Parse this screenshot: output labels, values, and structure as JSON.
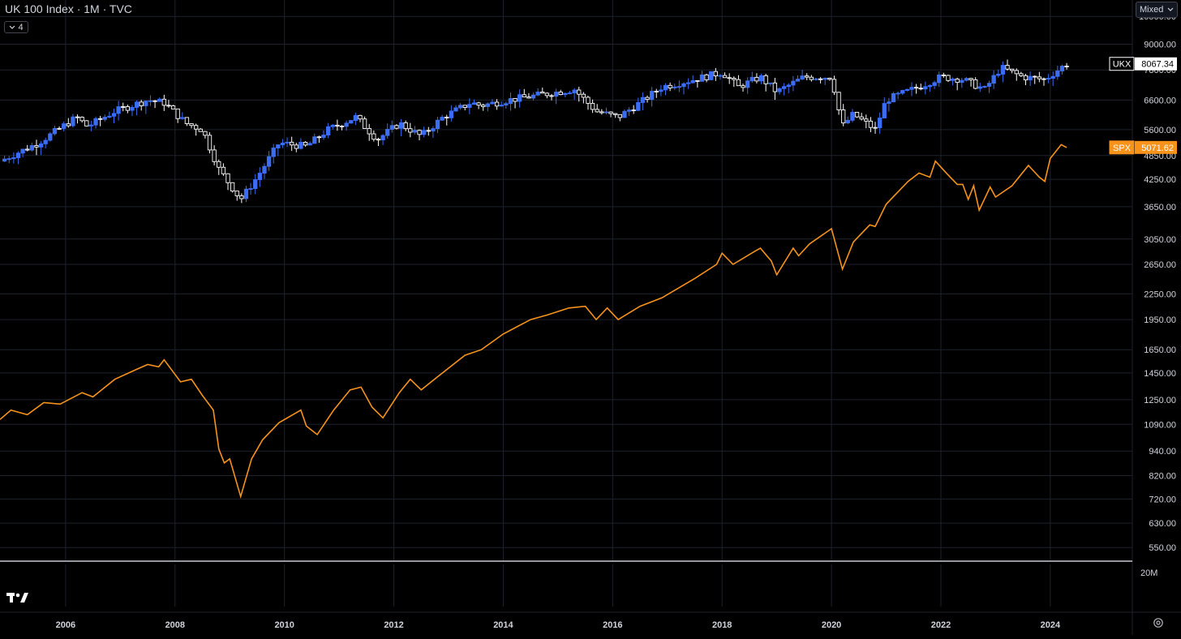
{
  "header": {
    "title": "UK 100 Index · 1M · TVC",
    "indicator_count": "4",
    "scale_mode": "Mixed"
  },
  "footer": {
    "volume_scale_label": "20M"
  },
  "colors": {
    "background": "#000000",
    "grid": "#1e222d",
    "up": "#3a6cf4",
    "down": "#ffffff",
    "spx": "#f7931a",
    "axis_text": "#d1d4dc",
    "divider": "#9598a1"
  },
  "icons": [
    "chevron-down-icon",
    "tradingview-logo-icon",
    "settings-gear-icon"
  ],
  "chart_data": {
    "type": "candlestick+line",
    "x_axis": {
      "unit": "year",
      "range": [
        2004.8,
        2025.5
      ],
      "ticks": [
        "2006",
        "2008",
        "2010",
        "2012",
        "2014",
        "2016",
        "2018",
        "2020",
        "2022",
        "2024"
      ]
    },
    "y_axis": {
      "scale": "log",
      "range": [
        510,
        11500
      ],
      "tick_labels": [
        "10500.00",
        "9000.00",
        "7800.00",
        "6600.00",
        "5600.00",
        "4850.00",
        "4250.00",
        "3650.00",
        "3050.00",
        "2650.00",
        "2250.00",
        "1950.00",
        "1650.00",
        "1450.00",
        "1250.00",
        "1090.00",
        "940.00",
        "820.00",
        "720.00",
        "630.00",
        "550.00"
      ],
      "grid": true
    },
    "series": [
      {
        "name": "UKX",
        "type": "candlestick",
        "last_value": "8067.34",
        "interval": "1M",
        "anchors": [
          [
            2004.8,
            4700
          ],
          [
            2005.5,
            5200
          ],
          [
            2006.2,
            6000
          ],
          [
            2006.4,
            5700
          ],
          [
            2006.9,
            6200
          ],
          [
            2007.5,
            6600
          ],
          [
            2007.8,
            6500
          ],
          [
            2008.2,
            5800
          ],
          [
            2008.5,
            5600
          ],
          [
            2008.8,
            4500
          ],
          [
            2009.2,
            3800
          ],
          [
            2009.5,
            4300
          ],
          [
            2009.9,
            5200
          ],
          [
            2010.4,
            5100
          ],
          [
            2010.8,
            5600
          ],
          [
            2011.3,
            6000
          ],
          [
            2011.7,
            5300
          ],
          [
            2012.1,
            5800
          ],
          [
            2012.5,
            5400
          ],
          [
            2012.9,
            6000
          ],
          [
            2013.4,
            6500
          ],
          [
            2013.6,
            6400
          ],
          [
            2014.1,
            6600
          ],
          [
            2014.7,
            6800
          ],
          [
            2015.3,
            7000
          ],
          [
            2015.7,
            6200
          ],
          [
            2016.1,
            6000
          ],
          [
            2016.5,
            6500
          ],
          [
            2016.9,
            7100
          ],
          [
            2017.5,
            7400
          ],
          [
            2018.0,
            7700
          ],
          [
            2018.3,
            7100
          ],
          [
            2018.7,
            7500
          ],
          [
            2019.0,
            6900
          ],
          [
            2019.5,
            7500
          ],
          [
            2020.0,
            7500
          ],
          [
            2020.2,
            5700
          ],
          [
            2020.4,
            6100
          ],
          [
            2020.8,
            5600
          ],
          [
            2021.0,
            6600
          ],
          [
            2021.6,
            7100
          ],
          [
            2022.0,
            7500
          ],
          [
            2022.4,
            7400
          ],
          [
            2022.8,
            7000
          ],
          [
            2023.1,
            7900
          ],
          [
            2023.5,
            7500
          ],
          [
            2023.9,
            7400
          ],
          [
            2024.2,
            7900
          ],
          [
            2024.3,
            8067
          ]
        ]
      },
      {
        "name": "SPX",
        "type": "line",
        "last_value": "5071.62",
        "values": [
          [
            2004.8,
            1120
          ],
          [
            2005.0,
            1180
          ],
          [
            2005.3,
            1150
          ],
          [
            2005.6,
            1230
          ],
          [
            2005.9,
            1220
          ],
          [
            2006.3,
            1300
          ],
          [
            2006.5,
            1270
          ],
          [
            2006.9,
            1400
          ],
          [
            2007.3,
            1480
          ],
          [
            2007.5,
            1520
          ],
          [
            2007.7,
            1500
          ],
          [
            2007.8,
            1560
          ],
          [
            2008.1,
            1380
          ],
          [
            2008.3,
            1400
          ],
          [
            2008.5,
            1280
          ],
          [
            2008.7,
            1180
          ],
          [
            2008.8,
            950
          ],
          [
            2008.9,
            880
          ],
          [
            2009.0,
            900
          ],
          [
            2009.2,
            730
          ],
          [
            2009.4,
            900
          ],
          [
            2009.6,
            1000
          ],
          [
            2009.9,
            1100
          ],
          [
            2010.3,
            1180
          ],
          [
            2010.4,
            1080
          ],
          [
            2010.6,
            1030
          ],
          [
            2010.9,
            1180
          ],
          [
            2011.2,
            1320
          ],
          [
            2011.4,
            1340
          ],
          [
            2011.6,
            1200
          ],
          [
            2011.8,
            1130
          ],
          [
            2012.1,
            1300
          ],
          [
            2012.3,
            1400
          ],
          [
            2012.5,
            1320
          ],
          [
            2012.8,
            1420
          ],
          [
            2013.3,
            1600
          ],
          [
            2013.6,
            1650
          ],
          [
            2014.0,
            1800
          ],
          [
            2014.5,
            1950
          ],
          [
            2014.8,
            2000
          ],
          [
            2015.2,
            2080
          ],
          [
            2015.5,
            2100
          ],
          [
            2015.7,
            1950
          ],
          [
            2015.9,
            2080
          ],
          [
            2016.1,
            1950
          ],
          [
            2016.5,
            2100
          ],
          [
            2016.9,
            2200
          ],
          [
            2017.5,
            2450
          ],
          [
            2017.9,
            2650
          ],
          [
            2018.0,
            2820
          ],
          [
            2018.2,
            2650
          ],
          [
            2018.6,
            2850
          ],
          [
            2018.7,
            2900
          ],
          [
            2018.9,
            2700
          ],
          [
            2019.0,
            2500
          ],
          [
            2019.3,
            2900
          ],
          [
            2019.4,
            2780
          ],
          [
            2019.6,
            2970
          ],
          [
            2020.0,
            3230
          ],
          [
            2020.2,
            2580
          ],
          [
            2020.4,
            3000
          ],
          [
            2020.7,
            3300
          ],
          [
            2020.8,
            3270
          ],
          [
            2021.0,
            3700
          ],
          [
            2021.4,
            4200
          ],
          [
            2021.6,
            4400
          ],
          [
            2021.8,
            4300
          ],
          [
            2021.9,
            4700
          ],
          [
            2022.1,
            4400
          ],
          [
            2022.3,
            4130
          ],
          [
            2022.4,
            4130
          ],
          [
            2022.5,
            3800
          ],
          [
            2022.6,
            4100
          ],
          [
            2022.7,
            3580
          ],
          [
            2022.9,
            4070
          ],
          [
            2023.0,
            3850
          ],
          [
            2023.3,
            4100
          ],
          [
            2023.6,
            4590
          ],
          [
            2023.8,
            4300
          ],
          [
            2023.9,
            4200
          ],
          [
            2024.0,
            4770
          ],
          [
            2024.2,
            5150
          ],
          [
            2024.3,
            5071
          ]
        ]
      }
    ]
  }
}
